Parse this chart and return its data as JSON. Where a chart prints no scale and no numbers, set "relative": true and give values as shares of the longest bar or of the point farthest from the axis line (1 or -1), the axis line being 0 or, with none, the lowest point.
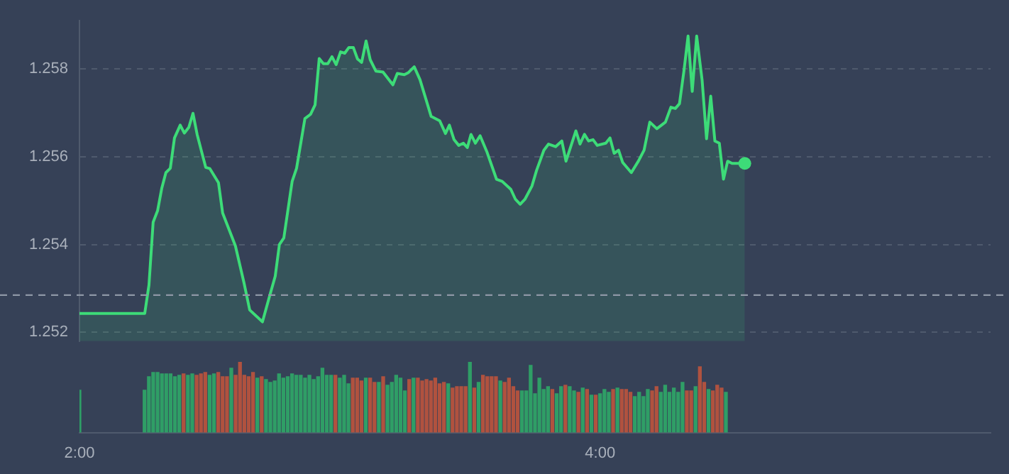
{
  "chart_data": [
    {
      "type": "area",
      "color": "#3ddc78",
      "grid": "y",
      "tick_labels": "y",
      "xlim": [
        2,
        5.5
      ],
      "ylim": [
        1.2518,
        1.2591
      ],
      "yticks": [
        1.252,
        1.254,
        1.256,
        1.258
      ],
      "ref_lines": [
        {
          "axis": "y",
          "value": 1.25285,
          "line_style": "dashed"
        }
      ],
      "x": [
        2.0,
        2.2507,
        2.267,
        2.283,
        2.3,
        2.316,
        2.332,
        2.349,
        2.365,
        2.387,
        2.403,
        2.42,
        2.436,
        2.452,
        2.469,
        2.485,
        2.501,
        2.534,
        2.55,
        2.567,
        2.599,
        2.632,
        2.654,
        2.703,
        2.73,
        2.752,
        2.768,
        2.785,
        2.817,
        2.834,
        2.866,
        2.888,
        2.905,
        2.921,
        2.937,
        2.954,
        2.97,
        2.986,
        3.003,
        3.019,
        3.035,
        3.052,
        3.068,
        3.084,
        3.101,
        3.117,
        3.139,
        3.166,
        3.204,
        3.221,
        3.248,
        3.264,
        3.286,
        3.308,
        3.33,
        3.351,
        3.384,
        3.406,
        3.421,
        3.439,
        3.457,
        3.475,
        3.49,
        3.504,
        3.521,
        3.539,
        3.566,
        3.602,
        3.624,
        3.657,
        3.675,
        3.693,
        3.711,
        3.738,
        3.756,
        3.784,
        3.802,
        3.829,
        3.853,
        3.869,
        3.907,
        3.923,
        3.94,
        3.956,
        3.973,
        3.989,
        4.022,
        4.038,
        4.054,
        4.071,
        4.087,
        4.12,
        4.147,
        4.169,
        4.191,
        4.218,
        4.251,
        4.272,
        4.289,
        4.305,
        4.322,
        4.338,
        4.354,
        4.371,
        4.392,
        4.409,
        4.425,
        4.441,
        4.458,
        4.474,
        4.49,
        4.507,
        4.556
      ],
      "values": [
        1.25243,
        1.25243,
        1.25308,
        1.25451,
        1.25477,
        1.25528,
        1.25564,
        1.25574,
        1.25643,
        1.25672,
        1.25654,
        1.25667,
        1.25699,
        1.25651,
        1.25612,
        1.25576,
        1.25573,
        1.25541,
        1.25472,
        1.25446,
        1.25397,
        1.25313,
        1.25251,
        1.25224,
        1.25282,
        1.25328,
        1.254,
        1.25415,
        1.25544,
        1.25574,
        1.25687,
        1.25697,
        1.25718,
        1.25824,
        1.25812,
        1.25812,
        1.25828,
        1.2581,
        1.25839,
        1.25836,
        1.25849,
        1.25849,
        1.25823,
        1.25815,
        1.25864,
        1.25821,
        1.25795,
        1.25793,
        1.25764,
        1.2579,
        1.25787,
        1.25792,
        1.25805,
        1.25776,
        1.25733,
        1.25692,
        1.25682,
        1.25653,
        1.25672,
        1.25639,
        1.25626,
        1.25631,
        1.25621,
        1.25651,
        1.25631,
        1.25648,
        1.2561,
        1.25549,
        1.25544,
        1.25526,
        1.25503,
        1.25492,
        1.25503,
        1.25533,
        1.25569,
        1.25615,
        1.25629,
        1.25623,
        1.25636,
        1.2559,
        1.25659,
        1.25629,
        1.25651,
        1.25636,
        1.25639,
        1.25626,
        1.25631,
        1.25643,
        1.25608,
        1.25615,
        1.25587,
        1.25564,
        1.2559,
        1.25615,
        1.25679,
        1.25664,
        1.25679,
        1.25713,
        1.2571,
        1.25721,
        1.25795,
        1.25875,
        1.25749,
        1.25875,
        1.25774,
        1.25641,
        1.25738,
        1.25636,
        1.25631,
        1.25549,
        1.2559,
        1.25585,
        1.25585
      ]
    },
    {
      "type": "bar",
      "relative": true,
      "tick_labels": "x",
      "xlim": [
        2,
        5.5
      ],
      "xticks": [
        {
          "value": 2,
          "label": "2:00"
        },
        {
          "value": 4,
          "label": "4:00"
        }
      ],
      "x": [
        2,
        2.25,
        2.2667,
        2.2833,
        2.3,
        2.3167,
        2.3333,
        2.35,
        2.3667,
        2.3833,
        2.4,
        2.4167,
        2.4333,
        2.45,
        2.4667,
        2.4833,
        2.5,
        2.5167,
        2.5333,
        2.55,
        2.5667,
        2.5833,
        2.6,
        2.6167,
        2.6333,
        2.65,
        2.6667,
        2.6833,
        2.7,
        2.7167,
        2.7333,
        2.75,
        2.7667,
        2.7833,
        2.8,
        2.8167,
        2.8333,
        2.85,
        2.8667,
        2.8833,
        2.9,
        2.9167,
        2.9333,
        2.95,
        2.9667,
        2.9833,
        3,
        3.0167,
        3.0333,
        3.05,
        3.0667,
        3.0833,
        3.1,
        3.1167,
        3.1333,
        3.15,
        3.1667,
        3.1833,
        3.2,
        3.2167,
        3.2333,
        3.25,
        3.2667,
        3.2833,
        3.3,
        3.3167,
        3.3333,
        3.35,
        3.3667,
        3.3833,
        3.4,
        3.4167,
        3.4333,
        3.45,
        3.4667,
        3.4833,
        3.5,
        3.5167,
        3.5333,
        3.55,
        3.5667,
        3.5833,
        3.6,
        3.6167,
        3.6333,
        3.65,
        3.6667,
        3.6833,
        3.7,
        3.7167,
        3.7333,
        3.75,
        3.7667,
        3.7833,
        3.8,
        3.8167,
        3.8333,
        3.85,
        3.8667,
        3.8833,
        3.9,
        3.9167,
        3.9333,
        3.95,
        3.9667,
        3.9833,
        4,
        4.0167,
        4.0333,
        4.05,
        4.0667,
        4.0833,
        4.1,
        4.1167,
        4.1333,
        4.15,
        4.1667,
        4.1833,
        4.2,
        4.2167,
        4.2333,
        4.25,
        4.2667,
        4.2833,
        4.3,
        4.3167,
        4.3333,
        4.35,
        4.3667,
        4.3833,
        4.4,
        4.4167,
        4.4333,
        4.45,
        4.4667,
        4.4833
      ],
      "values": [
        0.6,
        0.6,
        0.79,
        0.85,
        0.85,
        0.83,
        0.83,
        0.83,
        0.79,
        0.81,
        0.83,
        0.81,
        0.83,
        0.81,
        0.83,
        0.85,
        0.81,
        0.83,
        0.85,
        0.79,
        0.79,
        0.91,
        0.81,
        1,
        0.81,
        0.79,
        0.85,
        0.77,
        0.79,
        0.75,
        0.71,
        0.73,
        0.83,
        0.77,
        0.79,
        0.83,
        0.81,
        0.81,
        0.77,
        0.81,
        0.75,
        0.79,
        0.91,
        0.81,
        0.81,
        0.81,
        0.77,
        0.81,
        0.69,
        0.77,
        0.77,
        0.73,
        0.77,
        0.77,
        0.71,
        0.71,
        0.79,
        0.67,
        0.71,
        0.81,
        0.77,
        0.59,
        0.75,
        0.77,
        0.77,
        0.73,
        0.75,
        0.73,
        0.77,
        0.69,
        0.71,
        0.69,
        0.63,
        0.65,
        0.65,
        0.65,
        1,
        0.63,
        0.71,
        0.81,
        0.79,
        0.79,
        0.79,
        0.73,
        0.71,
        0.77,
        0.65,
        0.59,
        0.59,
        0.59,
        0.95,
        0.55,
        0.77,
        0.61,
        0.65,
        0.61,
        0.55,
        0.65,
        0.67,
        0.65,
        0.59,
        0.57,
        0.63,
        0.61,
        0.53,
        0.53,
        0.55,
        0.61,
        0.57,
        0.61,
        0.63,
        0.61,
        0.61,
        0.57,
        0.51,
        0.57,
        0.51,
        0.61,
        0.59,
        0.65,
        0.57,
        0.67,
        0.57,
        0.63,
        0.57,
        0.71,
        0.59,
        0.59,
        0.65,
        0.93,
        0.71,
        0.61,
        0.59,
        0.67,
        0.63,
        0.57
      ],
      "colors": [
        "#2f9e66",
        "#2f9e66",
        "#2f9e66",
        "#2f9e66",
        "#2f9e66",
        "#2f9e66",
        "#2f9e66",
        "#2f9e66",
        "#2f9e66",
        "#2f9e66",
        "#b0523f",
        "#2f9e66",
        "#2f9e66",
        "#b0523f",
        "#b0523f",
        "#b0523f",
        "#2f9e66",
        "#2f9e66",
        "#b0523f",
        "#b0523f",
        "#b0523f",
        "#2f9e66",
        "#b0523f",
        "#b0523f",
        "#b0523f",
        "#b0523f",
        "#b0523f",
        "#2f9e66",
        "#b0523f",
        "#2f9e66",
        "#2f9e66",
        "#2f9e66",
        "#2f9e66",
        "#2f9e66",
        "#2f9e66",
        "#2f9e66",
        "#2f9e66",
        "#2f9e66",
        "#2f9e66",
        "#2f9e66",
        "#2f9e66",
        "#2f9e66",
        "#2f9e66",
        "#2f9e66",
        "#2f9e66",
        "#b0523f",
        "#2f9e66",
        "#2f9e66",
        "#2f9e66",
        "#b0523f",
        "#b0523f",
        "#b0523f",
        "#2f9e66",
        "#b0523f",
        "#b0523f",
        "#2f9e66",
        "#b0523f",
        "#2f9e66",
        "#2f9e66",
        "#2f9e66",
        "#2f9e66",
        "#2f9e66",
        "#b0523f",
        "#2f9e66",
        "#b0523f",
        "#b0523f",
        "#b0523f",
        "#b0523f",
        "#b0523f",
        "#b0523f",
        "#b0523f",
        "#2f9e66",
        "#b0523f",
        "#b0523f",
        "#b0523f",
        "#b0523f",
        "#2f9e66",
        "#b0523f",
        "#2f9e66",
        "#b0523f",
        "#b0523f",
        "#b0523f",
        "#b0523f",
        "#2f9e66",
        "#b0523f",
        "#b0523f",
        "#b0523f",
        "#b0523f",
        "#2f9e66",
        "#2f9e66",
        "#2f9e66",
        "#2f9e66",
        "#2f9e66",
        "#2f9e66",
        "#2f9e66",
        "#b0523f",
        "#2f9e66",
        "#2f9e66",
        "#b0523f",
        "#2f9e66",
        "#2f9e66",
        "#b0523f",
        "#2f9e66",
        "#b0523f",
        "#2f9e66",
        "#b0523f",
        "#2f9e66",
        "#2f9e66",
        "#2f9e66",
        "#b0523f",
        "#2f9e66",
        "#b0523f",
        "#b0523f",
        "#b0523f",
        "#2f9e66",
        "#2f9e66",
        "#2f9e66",
        "#2f9e66",
        "#b0523f",
        "#b0523f",
        "#2f9e66",
        "#2f9e66",
        "#2f9e66",
        "#2f9e66",
        "#2f9e66",
        "#2f9e66",
        "#b0523f",
        "#b0523f",
        "#2f9e66",
        "#b0523f",
        "#b0523f",
        "#2f9e66",
        "#b0523f",
        "#b0523f",
        "#b0523f",
        "#2f9e66"
      ]
    }
  ]
}
